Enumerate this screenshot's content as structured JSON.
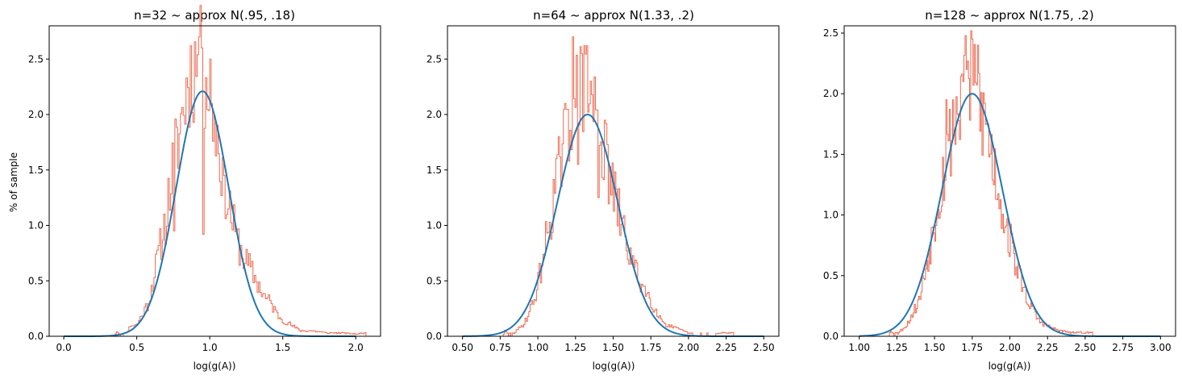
{
  "chart_data": [
    {
      "type": "histogram",
      "title": "n=32 ~ approx N(.95, .18)",
      "xlabel": "log(g(A))",
      "ylabel": "% of sample",
      "xlim": [
        -0.1,
        2.17
      ],
      "ylim": [
        0,
        2.8
      ],
      "xticks": [
        0.0,
        0.5,
        1.0,
        1.5,
        2.0
      ],
      "xtick_labels": [
        "0.0",
        "0.5",
        "1.0",
        "1.5",
        "2.0"
      ],
      "yticks": [
        0.0,
        0.5,
        1.0,
        1.5,
        2.0,
        2.5
      ],
      "ytick_labels": [
        "0.0",
        "0.5",
        "1.0",
        "1.5",
        "2.0",
        "2.5"
      ],
      "hist": {
        "color": "#ee6a50",
        "anchors": [
          [
            0.35,
            0.0
          ],
          [
            0.36,
            0.05
          ],
          [
            0.4,
            0.0
          ],
          [
            0.44,
            0.05
          ],
          [
            0.46,
            0.1
          ],
          [
            0.5,
            0.1
          ],
          [
            0.54,
            0.2
          ],
          [
            0.58,
            0.3
          ],
          [
            0.62,
            0.55
          ],
          [
            0.66,
            0.8
          ],
          [
            0.7,
            1.05
          ],
          [
            0.74,
            1.45
          ],
          [
            0.78,
            1.75
          ],
          [
            0.82,
            2.05
          ],
          [
            0.86,
            2.35
          ],
          [
            0.9,
            2.45
          ],
          [
            0.94,
            2.45
          ],
          [
            0.98,
            2.3
          ],
          [
            1.02,
            2.05
          ],
          [
            1.06,
            1.75
          ],
          [
            1.1,
            1.4
          ],
          [
            1.14,
            1.15
          ],
          [
            1.18,
            0.9
          ],
          [
            1.22,
            0.75
          ],
          [
            1.26,
            0.65
          ],
          [
            1.3,
            0.55
          ],
          [
            1.34,
            0.45
          ],
          [
            1.38,
            0.35
          ],
          [
            1.42,
            0.3
          ],
          [
            1.46,
            0.2
          ],
          [
            1.5,
            0.15
          ],
          [
            1.56,
            0.1
          ],
          [
            1.62,
            0.05
          ],
          [
            1.7,
            0.05
          ],
          [
            1.8,
            0.03
          ],
          [
            1.9,
            0.03
          ],
          [
            2.0,
            0.02
          ],
          [
            2.07,
            0.03
          ]
        ],
        "seed": 11,
        "noise": 0.22,
        "extra_spikes": [
          [
            0.93,
            2.7
          ],
          [
            0.95,
            2.6
          ],
          [
            0.87,
            2.62
          ],
          [
            1.0,
            2.5
          ],
          [
            0.96,
            0.92
          ],
          [
            0.76,
            0.95
          ],
          [
            1.1,
            1.45
          ],
          [
            1.12,
            1.1
          ]
        ]
      },
      "normal": {
        "mean": 0.95,
        "sd": 0.18,
        "peak": 2.21,
        "range": [
          0.0,
          2.0
        ],
        "color": "#1f77b4"
      }
    },
    {
      "type": "histogram",
      "title": "n=64 ~ approx N(1.33, .2)",
      "xlabel": "log(g(A))",
      "ylabel": "",
      "xlim": [
        0.4,
        2.6
      ],
      "ylim": [
        0,
        2.8
      ],
      "xticks": [
        0.5,
        0.75,
        1.0,
        1.25,
        1.5,
        1.75,
        2.0,
        2.25,
        2.5
      ],
      "xtick_labels": [
        "0.50",
        "0.75",
        "1.00",
        "1.25",
        "1.50",
        "1.75",
        "2.00",
        "2.25",
        "2.50"
      ],
      "yticks": [
        0.0,
        0.5,
        1.0,
        1.5,
        2.0,
        2.5
      ],
      "ytick_labels": [
        "0.0",
        "0.5",
        "1.0",
        "1.5",
        "2.0",
        "2.5"
      ],
      "hist": {
        "color": "#ee6a50",
        "anchors": [
          [
            0.77,
            0.0
          ],
          [
            0.78,
            0.05
          ],
          [
            0.82,
            0.0
          ],
          [
            0.86,
            0.05
          ],
          [
            0.9,
            0.1
          ],
          [
            0.94,
            0.2
          ],
          [
            0.98,
            0.35
          ],
          [
            1.02,
            0.6
          ],
          [
            1.06,
            0.9
          ],
          [
            1.1,
            1.2
          ],
          [
            1.14,
            1.5
          ],
          [
            1.18,
            1.75
          ],
          [
            1.22,
            2.0
          ],
          [
            1.26,
            2.2
          ],
          [
            1.3,
            2.2
          ],
          [
            1.34,
            2.15
          ],
          [
            1.38,
            2.05
          ],
          [
            1.42,
            1.8
          ],
          [
            1.46,
            1.55
          ],
          [
            1.5,
            1.3
          ],
          [
            1.54,
            1.1
          ],
          [
            1.58,
            0.9
          ],
          [
            1.62,
            0.7
          ],
          [
            1.66,
            0.55
          ],
          [
            1.7,
            0.45
          ],
          [
            1.74,
            0.35
          ],
          [
            1.78,
            0.25
          ],
          [
            1.82,
            0.15
          ],
          [
            1.86,
            0.1
          ],
          [
            1.9,
            0.08
          ],
          [
            1.96,
            0.05
          ],
          [
            2.02,
            0.02
          ],
          [
            2.1,
            0.0
          ],
          [
            2.22,
            0.03
          ],
          [
            2.3,
            0.03
          ]
        ],
        "seed": 29,
        "noise": 0.22,
        "extra_spikes": [
          [
            1.23,
            2.7
          ],
          [
            1.29,
            2.55
          ],
          [
            1.35,
            2.3
          ],
          [
            1.31,
            2.62
          ],
          [
            1.33,
            2.62
          ],
          [
            1.27,
            1.55
          ],
          [
            1.4,
            1.25
          ]
        ]
      },
      "normal": {
        "mean": 1.33,
        "sd": 0.2,
        "peak": 2.0,
        "range": [
          0.5,
          2.5
        ],
        "color": "#1f77b4"
      }
    },
    {
      "type": "histogram",
      "title": "n=128 ~ approx N(1.75, .2)",
      "xlabel": "log(g(A))",
      "ylabel": "",
      "xlim": [
        0.9,
        3.1
      ],
      "ylim": [
        0,
        2.56
      ],
      "xticks": [
        1.0,
        1.25,
        1.5,
        1.75,
        2.0,
        2.25,
        2.5,
        2.75,
        3.0
      ],
      "xtick_labels": [
        "1.00",
        "1.25",
        "1.50",
        "1.75",
        "2.00",
        "2.25",
        "2.50",
        "2.75",
        "3.00"
      ],
      "yticks": [
        0.0,
        0.5,
        1.0,
        1.5,
        2.0,
        2.5
      ],
      "ytick_labels": [
        "0.0",
        "0.5",
        "1.0",
        "1.5",
        "2.0",
        "2.5"
      ],
      "hist": {
        "color": "#ee6a50",
        "anchors": [
          [
            1.2,
            0.0
          ],
          [
            1.21,
            0.05
          ],
          [
            1.24,
            0.0
          ],
          [
            1.28,
            0.05
          ],
          [
            1.32,
            0.1
          ],
          [
            1.36,
            0.2
          ],
          [
            1.4,
            0.3
          ],
          [
            1.44,
            0.55
          ],
          [
            1.48,
            0.8
          ],
          [
            1.52,
            1.1
          ],
          [
            1.56,
            1.35
          ],
          [
            1.6,
            1.6
          ],
          [
            1.64,
            1.8
          ],
          [
            1.68,
            2.0
          ],
          [
            1.72,
            2.1
          ],
          [
            1.76,
            2.05
          ],
          [
            1.8,
            1.9
          ],
          [
            1.84,
            1.75
          ],
          [
            1.88,
            1.5
          ],
          [
            1.92,
            1.25
          ],
          [
            1.96,
            1.0
          ],
          [
            2.0,
            0.8
          ],
          [
            2.04,
            0.6
          ],
          [
            2.08,
            0.45
          ],
          [
            2.12,
            0.3
          ],
          [
            2.16,
            0.2
          ],
          [
            2.2,
            0.12
          ],
          [
            2.26,
            0.08
          ],
          [
            2.32,
            0.05
          ],
          [
            2.4,
            0.03
          ],
          [
            2.5,
            0.03
          ],
          [
            2.55,
            0.03
          ]
        ],
        "seed": 53,
        "noise": 0.22,
        "extra_spikes": [
          [
            1.75,
            2.45
          ],
          [
            1.79,
            2.4
          ],
          [
            1.71,
            2.2
          ],
          [
            1.66,
            1.78
          ],
          [
            1.69,
            2.1
          ],
          [
            1.85,
            1.75
          ],
          [
            1.58,
            1.95
          ],
          [
            1.62,
            1.95
          ]
        ]
      },
      "normal": {
        "mean": 1.75,
        "sd": 0.2,
        "peak": 2.0,
        "range": [
          1.0,
          3.0
        ],
        "color": "#1f77b4"
      }
    }
  ]
}
